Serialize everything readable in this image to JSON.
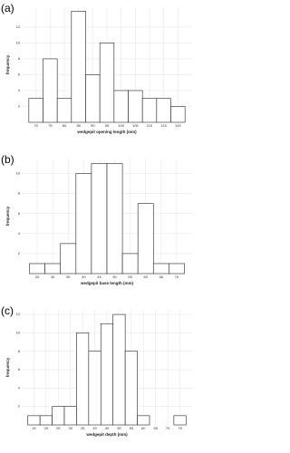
{
  "chart_data": [
    {
      "type": "histogram",
      "label": "(a)",
      "xlabel": "wedgepit opening length (mm)",
      "ylabel": "frequency",
      "bins": [
        67.5,
        72.5,
        77.5,
        82.5,
        87.5,
        92.5,
        97.5,
        102.5,
        107.5,
        112.5,
        117.5,
        122.5
      ],
      "values": [
        3,
        8,
        3,
        14,
        6,
        10,
        4,
        4,
        3,
        3,
        2
      ],
      "xlim": [
        65,
        125
      ],
      "xticks": [
        70,
        75,
        80,
        85,
        90,
        95,
        100,
        105,
        110,
        115,
        120
      ],
      "ylim": [
        0,
        14.5
      ],
      "yticks": [
        2,
        4,
        6,
        8,
        10,
        12
      ],
      "grid": true,
      "color": "#ffffff"
    },
    {
      "type": "histogram",
      "label": "(b)",
      "xlabel": "wedgepit base length (mm)",
      "ylabel": "frequency",
      "bins": [
        22.5,
        27.5,
        32.5,
        37.5,
        42.5,
        47.5,
        52.5,
        57.5,
        62.5,
        67.5,
        72.5
      ],
      "values": [
        1,
        1,
        3,
        10,
        11,
        11,
        2,
        7,
        1,
        1
      ],
      "xlim": [
        20,
        75
      ],
      "xticks": [
        25,
        30,
        35,
        40,
        45,
        50,
        55,
        60,
        65,
        70
      ],
      "ylim": [
        0,
        11.5
      ],
      "yticks": [
        2,
        4,
        6,
        8,
        10
      ],
      "grid": true,
      "color": "#ffffff"
    },
    {
      "type": "histogram",
      "label": "(c)",
      "xlabel": "wedgepit depth (mm)",
      "ylabel": "frequency",
      "bins": [
        12.5,
        17.5,
        22.5,
        27.5,
        32.5,
        37.5,
        42.5,
        47.5,
        52.5,
        57.5,
        62.5,
        67.5,
        72.5,
        77.5
      ],
      "values": [
        1,
        1,
        2,
        2,
        10,
        8,
        11,
        12,
        8,
        1,
        0,
        0,
        1
      ],
      "xlim": [
        10,
        80
      ],
      "xticks": [
        15,
        20,
        25,
        30,
        35,
        40,
        45,
        50,
        55,
        60,
        65,
        70,
        75
      ],
      "ylim": [
        0,
        12.5
      ],
      "yticks": [
        2,
        4,
        6,
        8,
        10,
        12
      ],
      "grid": true,
      "color": "#ffffff"
    }
  ]
}
